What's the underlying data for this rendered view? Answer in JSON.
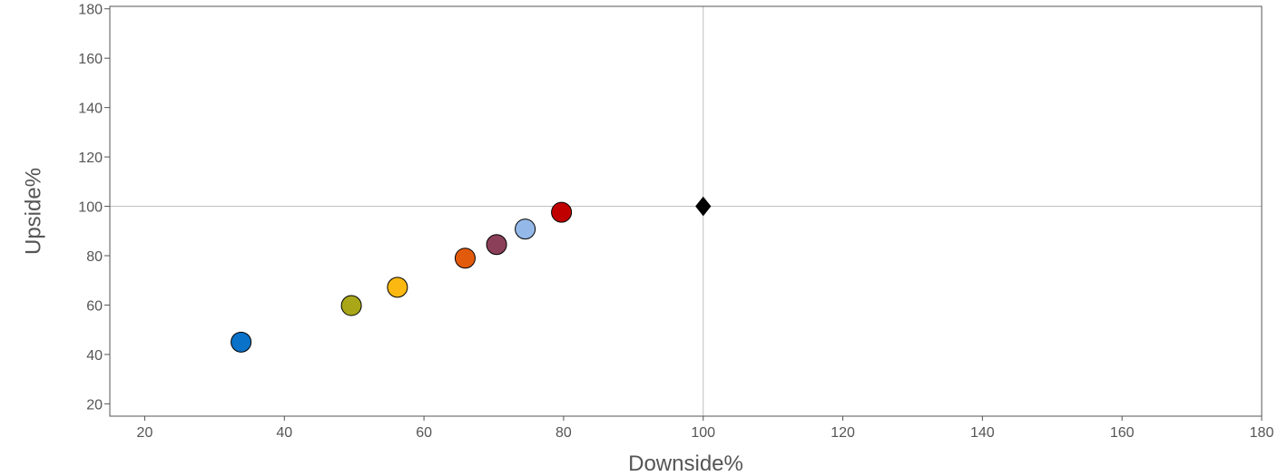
{
  "chart_data": {
    "type": "scatter",
    "xlabel": "Downside%",
    "ylabel": "Upside%",
    "xlim": [
      15,
      180
    ],
    "ylim": [
      15,
      181
    ],
    "x_ticks": [
      20,
      40,
      60,
      80,
      100,
      120,
      140,
      160,
      180
    ],
    "y_ticks": [
      20,
      40,
      60,
      80,
      100,
      120,
      140,
      160,
      180
    ],
    "reference_lines": {
      "x": 100,
      "y": 100,
      "color": "#c0c0c0"
    },
    "grid": false,
    "legend": "none",
    "points": [
      {
        "x": 33.8,
        "y": 45.0,
        "color": "#0a72c8",
        "marker": "circle"
      },
      {
        "x": 49.6,
        "y": 59.8,
        "color": "#a9a718",
        "marker": "circle"
      },
      {
        "x": 56.2,
        "y": 67.2,
        "color": "#fbb810",
        "marker": "circle"
      },
      {
        "x": 65.9,
        "y": 79.0,
        "color": "#e25a0c",
        "marker": "circle"
      },
      {
        "x": 70.4,
        "y": 84.5,
        "color": "#8b3f58",
        "marker": "circle"
      },
      {
        "x": 74.5,
        "y": 90.8,
        "color": "#94b9e9",
        "marker": "circle"
      },
      {
        "x": 79.7,
        "y": 97.6,
        "color": "#c00000",
        "marker": "circle"
      },
      {
        "x": 100,
        "y": 100,
        "color": "#000000",
        "marker": "diamond"
      }
    ]
  }
}
